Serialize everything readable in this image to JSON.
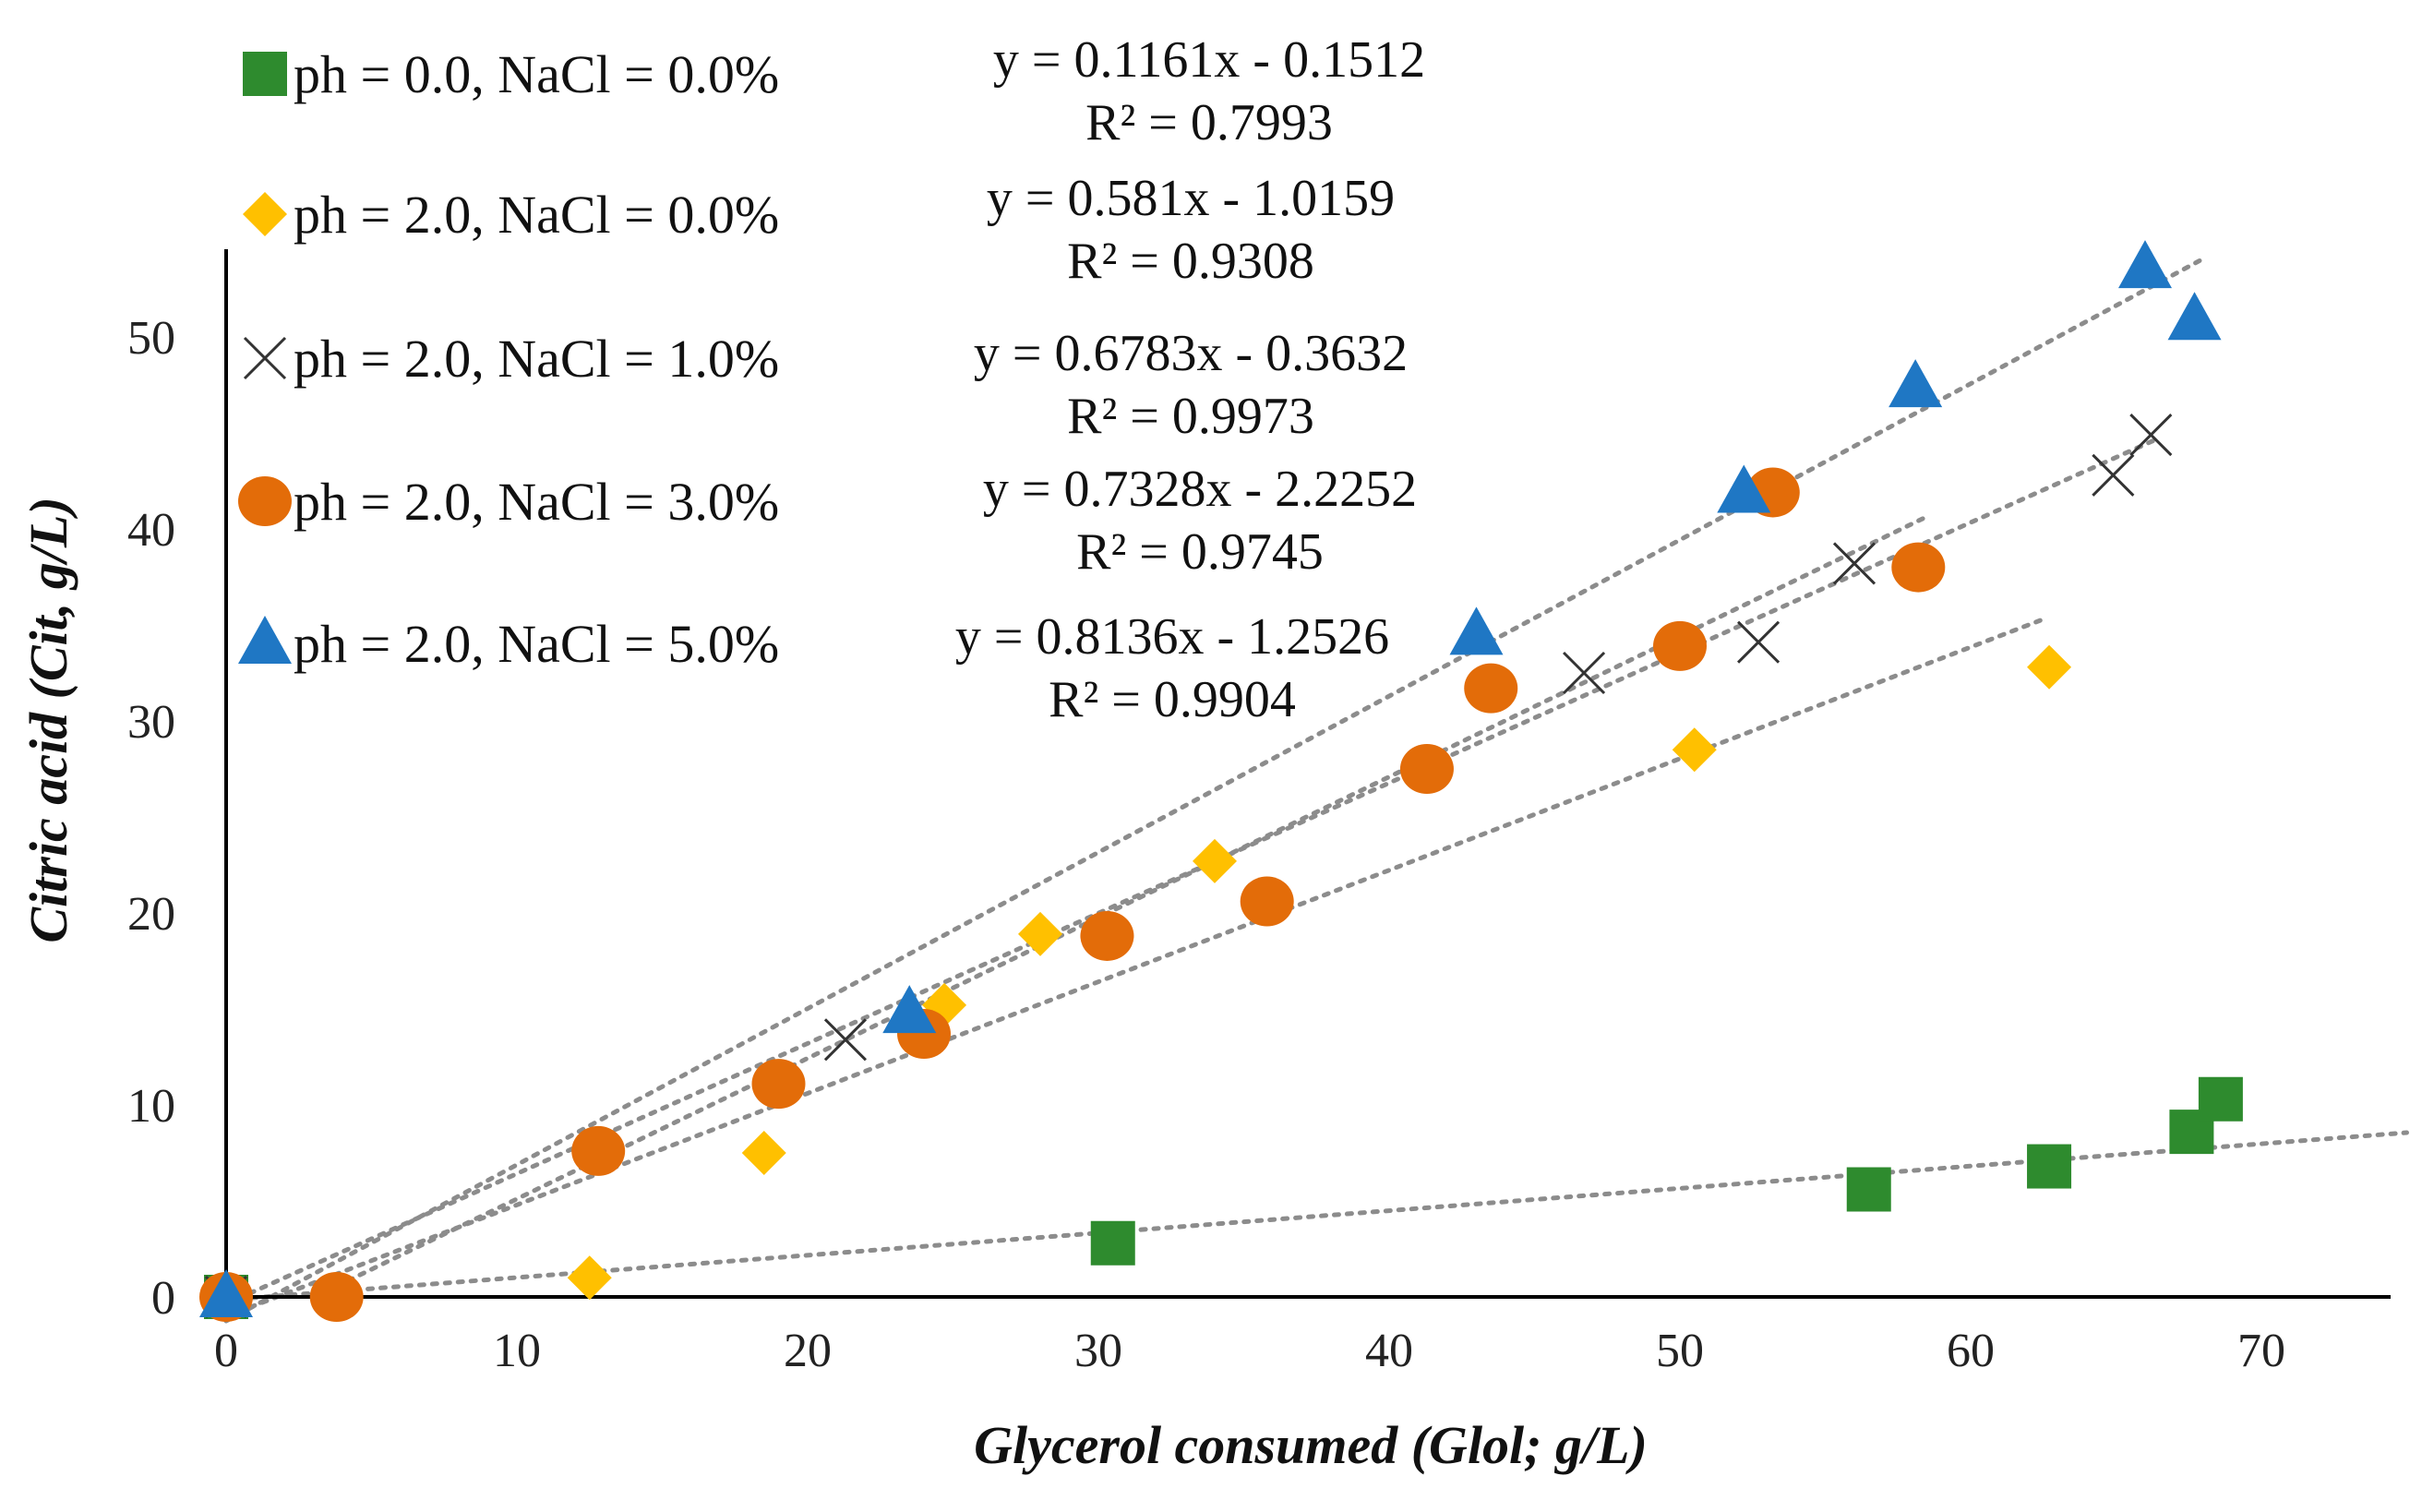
{
  "chart_data": {
    "type": "scatter",
    "xlabel": "Glycerol consumed (Glol; g/L)",
    "ylabel": "Citric acid (Cit, g/L)",
    "xlim": [
      0,
      75
    ],
    "ylim": [
      0,
      55
    ],
    "x_ticks": [
      "0",
      "10",
      "20",
      "30",
      "40",
      "50",
      "60",
      "70"
    ],
    "y_ticks": [
      "0",
      "10",
      "20",
      "30",
      "40",
      "50"
    ],
    "grid": false,
    "legend_position": "top-left",
    "trendline_style": "dotted",
    "series": [
      {
        "name": "ph = 0.0, NaCl = 0.0%",
        "marker": "square",
        "color": "#2e8b2e",
        "equation": "y = 0.1161x  - 0.1512",
        "r2": "R² = 0.7993",
        "slope": 0.1161,
        "intercept": -0.1512,
        "trend_x": [
          0,
          75
        ],
        "points": [
          [
            0,
            0
          ],
          [
            30.5,
            2.8
          ],
          [
            56.5,
            5.6
          ],
          [
            62.7,
            6.8
          ],
          [
            67.6,
            8.6
          ],
          [
            68.6,
            10.3
          ]
        ]
      },
      {
        "name": "ph = 2.0, NaCl = 0.0%",
        "marker": "diamond",
        "color": "#ffc000",
        "equation": "y = 0.581x  - 1.0159",
        "r2": "R² = 0.9308",
        "slope": 0.581,
        "intercept": -1.0159,
        "trend_x": [
          0,
          62.5
        ],
        "points": [
          [
            0,
            0
          ],
          [
            12.5,
            1.0
          ],
          [
            18.5,
            7.5
          ],
          [
            24.7,
            15.2
          ],
          [
            28.0,
            18.9
          ],
          [
            34.0,
            22.7
          ],
          [
            50.5,
            28.5
          ],
          [
            62.7,
            32.8
          ]
        ]
      },
      {
        "name": "ph = 2.0, NaCl = 1.0%",
        "marker": "x",
        "color": "#333333",
        "equation": "y = 0.6783x  - 0.3632",
        "r2": "R² = 0.9973",
        "slope": 0.6783,
        "intercept": -0.3632,
        "trend_x": [
          0,
          66.5
        ],
        "points": [
          [
            0,
            0
          ],
          [
            21.3,
            13.4
          ],
          [
            46.7,
            32.5
          ],
          [
            52.7,
            34.1
          ],
          [
            56.0,
            38.2
          ],
          [
            64.9,
            42.8
          ],
          [
            66.2,
            44.9
          ]
        ]
      },
      {
        "name": "ph = 2.0, NaCl = 3.0%",
        "marker": "circle",
        "color": "#e36c09",
        "equation": "y = 0.7328x  - 2.2252",
        "r2": "R² = 0.9745",
        "slope": 0.7328,
        "intercept": -2.2252,
        "trend_x": [
          3.0,
          58.5
        ],
        "points": [
          [
            0,
            0
          ],
          [
            3.8,
            0
          ],
          [
            12.8,
            7.6
          ],
          [
            19.0,
            11.1
          ],
          [
            24.0,
            13.7
          ],
          [
            30.3,
            18.8
          ],
          [
            35.8,
            20.6
          ],
          [
            41.3,
            27.5
          ],
          [
            43.5,
            31.7
          ],
          [
            50.0,
            33.9
          ],
          [
            53.2,
            41.9
          ],
          [
            58.2,
            38.0
          ]
        ]
      },
      {
        "name": "ph = 2.0, NaCl = 5.0%",
        "marker": "triangle",
        "color": "#1f77c4",
        "equation": "y = 0.8136x  - 1.2526",
        "r2": "R² = 0.9904",
        "slope": 0.8136,
        "intercept": -1.2526,
        "trend_x": [
          0,
          68.0
        ],
        "points": [
          [
            0,
            0
          ],
          [
            23.5,
            14.8
          ],
          [
            43.0,
            34.5
          ],
          [
            52.2,
            41.9
          ],
          [
            58.1,
            47.4
          ],
          [
            66.0,
            53.6
          ],
          [
            67.7,
            50.9
          ]
        ]
      }
    ]
  }
}
